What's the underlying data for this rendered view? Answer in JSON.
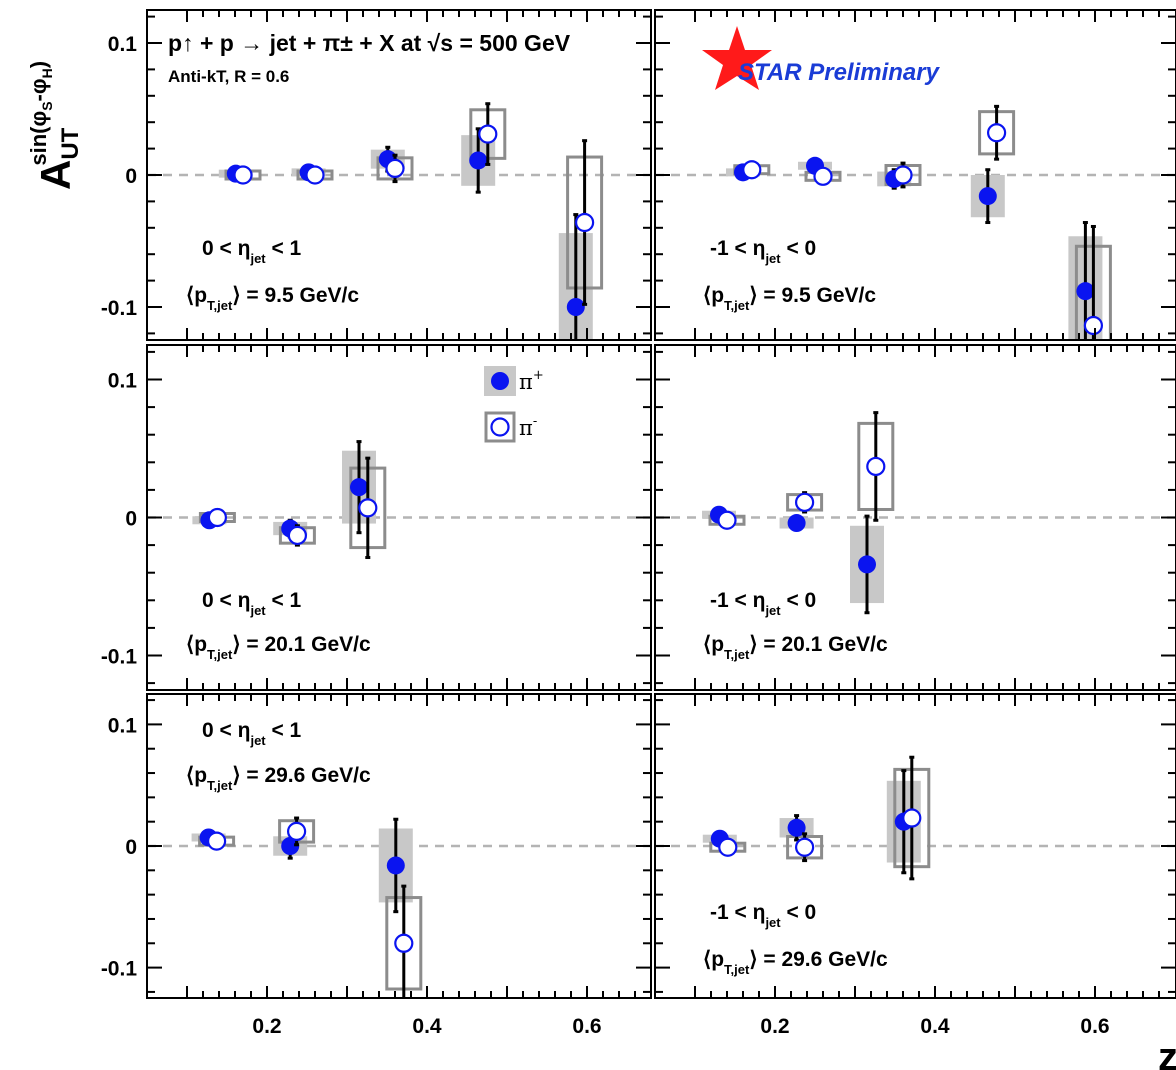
{
  "figure": {
    "process": "p↑ + p → jet + π± + X at √s = 500 GeV",
    "algorithm": "Anti-kT, R = 0.6",
    "logo_text": "STAR Preliminary",
    "y_axis_label": "A_UT^sin(φS-φH)",
    "x_axis_label": "z",
    "colors": {
      "pi_plus": "#0a14f0",
      "pi_minus": "#0a14f0",
      "syst_pi_plus": "#c8c8c8",
      "syst_pi_minus": "#8c8c8c",
      "logo_star": "#ff1a1a",
      "logo_blue": "#1a3cd6"
    },
    "legend": [
      {
        "label": "π+",
        "marker": "filled-circle"
      },
      {
        "label": "π-",
        "marker": "open-circle"
      }
    ]
  },
  "chart_data": {
    "type": "scatter",
    "xlim": [
      0.05,
      0.68
    ],
    "ylim": [
      -0.125,
      0.125
    ],
    "xticks": [
      "0.2",
      "0.4",
      "0.6"
    ],
    "yticks": [
      "0.1",
      "0",
      "-0.1"
    ],
    "panels": [
      {
        "id": "eta-pos-pt-9.5",
        "eta_label": "0 < ηjet < 1",
        "pt_label": "⟨pT,jet⟩ = 9.5 GeV/c",
        "pi_plus": [
          {
            "x": 0.161,
            "y": 0.001,
            "err": 0.002
          },
          {
            "x": 0.252,
            "y": 0.002,
            "err": 0.003
          },
          {
            "x": 0.351,
            "y": 0.012,
            "err": 0.009
          },
          {
            "x": 0.464,
            "y": 0.011,
            "err": 0.024
          },
          {
            "x": 0.586,
            "y": -0.1,
            "err": 0.07
          }
        ],
        "pi_minus": [
          {
            "x": 0.17,
            "y": 0.0,
            "err": 0.002
          },
          {
            "x": 0.26,
            "y": 0.0,
            "err": 0.003
          },
          {
            "x": 0.36,
            "y": 0.005,
            "err": 0.01
          },
          {
            "x": 0.476,
            "y": 0.031,
            "err": 0.023
          },
          {
            "x": 0.597,
            "y": -0.036,
            "err": 0.062
          }
        ]
      },
      {
        "id": "eta-neg-pt-9.5",
        "eta_label": "-1 < ηjet < 0",
        "pt_label": "⟨pT,jet⟩ = 9.5 GeV/c",
        "pi_plus": [
          {
            "x": 0.16,
            "y": 0.002,
            "err": 0.002
          },
          {
            "x": 0.25,
            "y": 0.007,
            "err": 0.003
          },
          {
            "x": 0.349,
            "y": -0.003,
            "err": 0.007
          },
          {
            "x": 0.466,
            "y": -0.016,
            "err": 0.02
          },
          {
            "x": 0.588,
            "y": -0.088,
            "err": 0.052
          }
        ],
        "pi_minus": [
          {
            "x": 0.171,
            "y": 0.004,
            "err": 0.002
          },
          {
            "x": 0.26,
            "y": -0.001,
            "err": 0.003
          },
          {
            "x": 0.36,
            "y": 0.0,
            "err": 0.009
          },
          {
            "x": 0.477,
            "y": 0.032,
            "err": 0.02
          },
          {
            "x": 0.598,
            "y": -0.114,
            "err": 0.075
          }
        ]
      },
      {
        "id": "eta-pos-pt-20.1",
        "eta_label": "0 < ηjet < 1",
        "pt_label": "⟨pT,jet⟩ = 20.1 GeV/c",
        "pi_plus": [
          {
            "x": 0.128,
            "y": -0.002,
            "err": 0.002
          },
          {
            "x": 0.229,
            "y": -0.008,
            "err": 0.006
          },
          {
            "x": 0.315,
            "y": 0.022,
            "err": 0.033
          }
        ],
        "pi_minus": [
          {
            "x": 0.138,
            "y": 0.0,
            "err": 0.002
          },
          {
            "x": 0.238,
            "y": -0.013,
            "err": 0.007
          },
          {
            "x": 0.326,
            "y": 0.007,
            "err": 0.036
          }
        ]
      },
      {
        "id": "eta-neg-pt-20.1",
        "eta_label": "-1 < ηjet < 0",
        "pt_label": "⟨pT,jet⟩ = 20.1 GeV/c",
        "pi_plus": [
          {
            "x": 0.13,
            "y": 0.002,
            "err": 0.002
          },
          {
            "x": 0.227,
            "y": -0.004,
            "err": 0.005
          },
          {
            "x": 0.315,
            "y": -0.034,
            "err": 0.035
          }
        ],
        "pi_minus": [
          {
            "x": 0.14,
            "y": -0.002,
            "err": 0.002
          },
          {
            "x": 0.237,
            "y": 0.011,
            "err": 0.007
          },
          {
            "x": 0.326,
            "y": 0.037,
            "err": 0.039
          }
        ]
      },
      {
        "id": "eta-pos-pt-29.6",
        "eta_label": "0 < ηjet < 1",
        "pt_label": "⟨pT,jet⟩ = 29.6 GeV/c",
        "pi_plus": [
          {
            "x": 0.127,
            "y": 0.007,
            "err": 0.002
          },
          {
            "x": 0.229,
            "y": 0.0,
            "err": 0.01
          },
          {
            "x": 0.361,
            "y": -0.016,
            "err": 0.038
          }
        ],
        "pi_minus": [
          {
            "x": 0.137,
            "y": 0.004,
            "err": 0.002
          },
          {
            "x": 0.237,
            "y": 0.012,
            "err": 0.011
          },
          {
            "x": 0.371,
            "y": -0.08,
            "err": 0.047
          }
        ]
      },
      {
        "id": "eta-neg-pt-29.6",
        "eta_label": "-1 < ηjet < 0",
        "pt_label": "⟨pT,jet⟩ = 29.6 GeV/c",
        "pi_plus": [
          {
            "x": 0.131,
            "y": 0.006,
            "err": 0.002
          },
          {
            "x": 0.227,
            "y": 0.015,
            "err": 0.01
          },
          {
            "x": 0.361,
            "y": 0.02,
            "err": 0.042
          }
        ],
        "pi_minus": [
          {
            "x": 0.141,
            "y": -0.001,
            "err": 0.002
          },
          {
            "x": 0.237,
            "y": -0.001,
            "err": 0.011
          },
          {
            "x": 0.371,
            "y": 0.023,
            "err": 0.05
          }
        ]
      }
    ]
  }
}
